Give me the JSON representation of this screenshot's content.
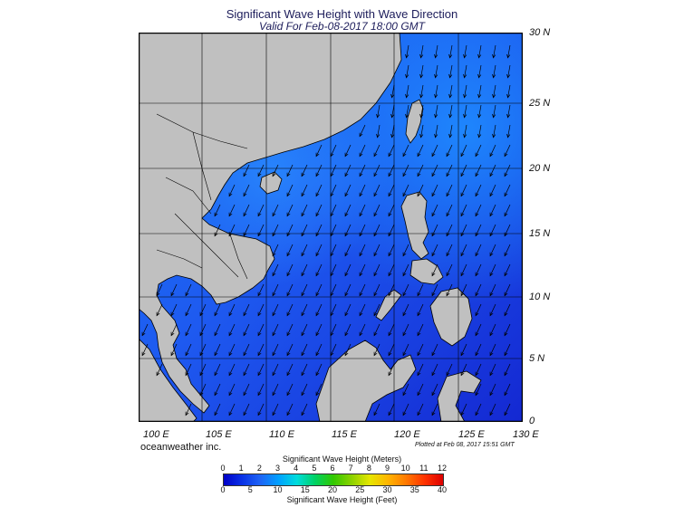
{
  "header": {
    "title": "Significant Wave Height with Wave Direction",
    "subtitle": "Valid For Feb-08-2017 18:00 GMT"
  },
  "axes": {
    "lat_labels": [
      "30 N",
      "25 N",
      "20 N",
      "15 N",
      "10 N",
      "5 N",
      "0"
    ],
    "lon_labels": [
      "100 E",
      "105 E",
      "110 E",
      "115 E",
      "120 E",
      "125 E",
      "130 E"
    ]
  },
  "footer": {
    "credit": "oceanweather inc.",
    "plotted": "Plotted at Feb 08, 2017 15:51 GMT"
  },
  "legend": {
    "meters_title": "Significant Wave Height (Meters)",
    "meters_ticks": [
      "0",
      "1",
      "2",
      "3",
      "4",
      "5",
      "6",
      "7",
      "8",
      "9",
      "10",
      "11",
      "12"
    ],
    "feet_title": "Significant Wave Height (Feet)",
    "feet_ticks": [
      "0",
      "5",
      "10",
      "15",
      "20",
      "25",
      "30",
      "35",
      "40"
    ],
    "colors": [
      "#0000c8",
      "#0a32e6",
      "#1e64f5",
      "#00a0ff",
      "#00dcdc",
      "#00d264",
      "#32c800",
      "#8cd200",
      "#e6e600",
      "#ffb400",
      "#ff7800",
      "#ff3200",
      "#dc0000"
    ]
  },
  "map": {
    "land_color": "#c0c0c0",
    "sea_deep": "#1428d2",
    "sea_mid": "#1e5af0",
    "sea_light": "#1a78f5"
  }
}
